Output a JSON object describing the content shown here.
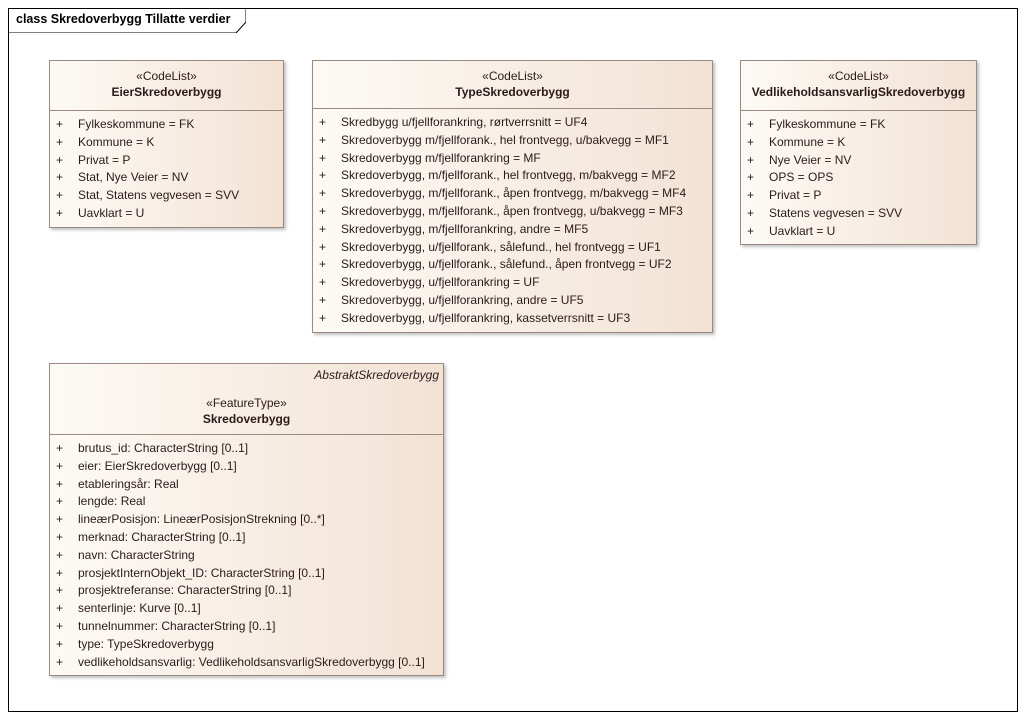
{
  "diagram_title": "class Skredoverbygg Tillatte verdier",
  "colors": {
    "border": "#9a8a80",
    "fill_start": "#fdfaf6",
    "fill_end": "#f2e2d4"
  },
  "classes": [
    {
      "stereotype": "«CodeList»",
      "name": "EierSkredoverbygg",
      "items": [
        "Fylkeskommune = FK",
        "Kommune = K",
        "Privat = P",
        "Stat, Nye Veier = NV",
        "Stat, Statens vegvesen = SVV",
        "Uavklart = U"
      ]
    },
    {
      "stereotype": "«CodeList»",
      "name": "TypeSkredoverbygg",
      "items": [
        "Skredbygg u/fjellforankring, rørtverrsnitt = UF4",
        "Skredoverbygg m/fjellforank., hel frontvegg, u/bakvegg = MF1",
        "Skredoverbygg m/fjellforankring = MF",
        "Skredoverbygg, m/fjellforank., hel frontvegg, m/bakvegg = MF2",
        "Skredoverbygg, m/fjellforank., åpen frontvegg, m/bakvegg = MF4",
        "Skredoverbygg, m/fjellforank., åpen frontvegg, u/bakvegg = MF3",
        "Skredoverbygg, m/fjellforankring, andre = MF5",
        "Skredoverbygg, u/fjellforank., sålefund., hel frontvegg = UF1",
        "Skredoverbygg, u/fjellforank., sålefund., åpen frontvegg = UF2",
        "Skredoverbygg, u/fjellforankring = UF",
        "Skredoverbygg, u/fjellforankring, andre = UF5",
        "Skredoverbygg, u/fjellforankring, kassetverrsnitt = UF3"
      ]
    },
    {
      "stereotype": "«CodeList»",
      "name": "VedlikeholdsansvarligSkredoverbygg",
      "items": [
        "Fylkeskommune = FK",
        "Kommune = K",
        "Nye Veier = NV",
        "OPS = OPS",
        "Privat = P",
        "Statens vegvesen = SVV",
        "Uavklart = U"
      ]
    },
    {
      "parent": "AbstraktSkredoverbygg",
      "stereotype": "«FeatureType»",
      "name": "Skredoverbygg",
      "items": [
        "brutus_id: CharacterString [0..1]",
        "eier: EierSkredoverbygg [0..1]",
        "etableringsår: Real",
        "lengde: Real",
        "lineærPosisjon: LineærPosisjonStrekning [0..*]",
        "merknad: CharacterString [0..1]",
        "navn: CharacterString",
        "prosjektInternObjekt_ID: CharacterString [0..1]",
        "prosjektreferanse: CharacterString [0..1]",
        "senterlinje: Kurve [0..1]",
        "tunnelnummer: CharacterString [0..1]",
        "type: TypeSkredoverbygg",
        "vedlikeholdsansvarlig: VedlikeholdsansvarligSkredoverbygg [0..1]"
      ]
    }
  ],
  "visibility_symbol": "+"
}
